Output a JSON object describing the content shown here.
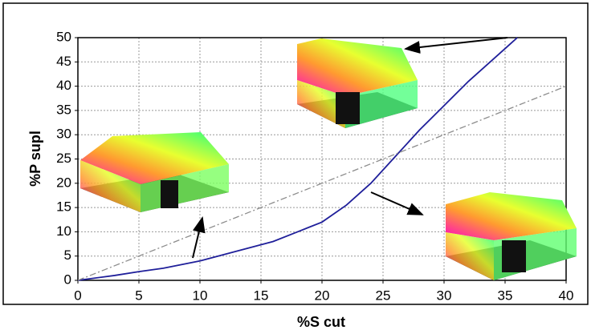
{
  "chart_data": {
    "type": "line",
    "x_label": "%S cut",
    "y_label": "%P supl",
    "x": [
      0,
      3,
      5,
      7,
      10,
      13,
      16,
      18,
      20,
      22,
      24,
      26,
      28,
      30,
      32,
      34,
      36,
      38,
      40
    ],
    "series": [
      {
        "color": "#1f1f9a",
        "dash": "solid",
        "values": [
          0,
          1,
          1.8,
          2.5,
          4,
          6,
          8,
          10,
          12,
          15.5,
          20,
          25.5,
          31,
          36,
          41,
          45.5,
          50,
          null,
          null
        ]
      },
      {
        "color": "#8c8c8c",
        "dash": "dash-dot",
        "values": [
          0,
          3,
          5,
          7,
          10,
          13,
          16,
          18,
          20,
          22,
          24,
          26,
          28,
          30,
          32,
          34,
          36,
          38,
          40
        ]
      }
    ],
    "xlim": [
      0,
      40
    ],
    "xticks": [
      0,
      5,
      10,
      15,
      20,
      25,
      30,
      35,
      40
    ],
    "ylim": [
      0,
      50
    ],
    "yticks": [
      0,
      5,
      10,
      15,
      20,
      25,
      30,
      35,
      40,
      45,
      50
    ],
    "grid": true
  }
}
